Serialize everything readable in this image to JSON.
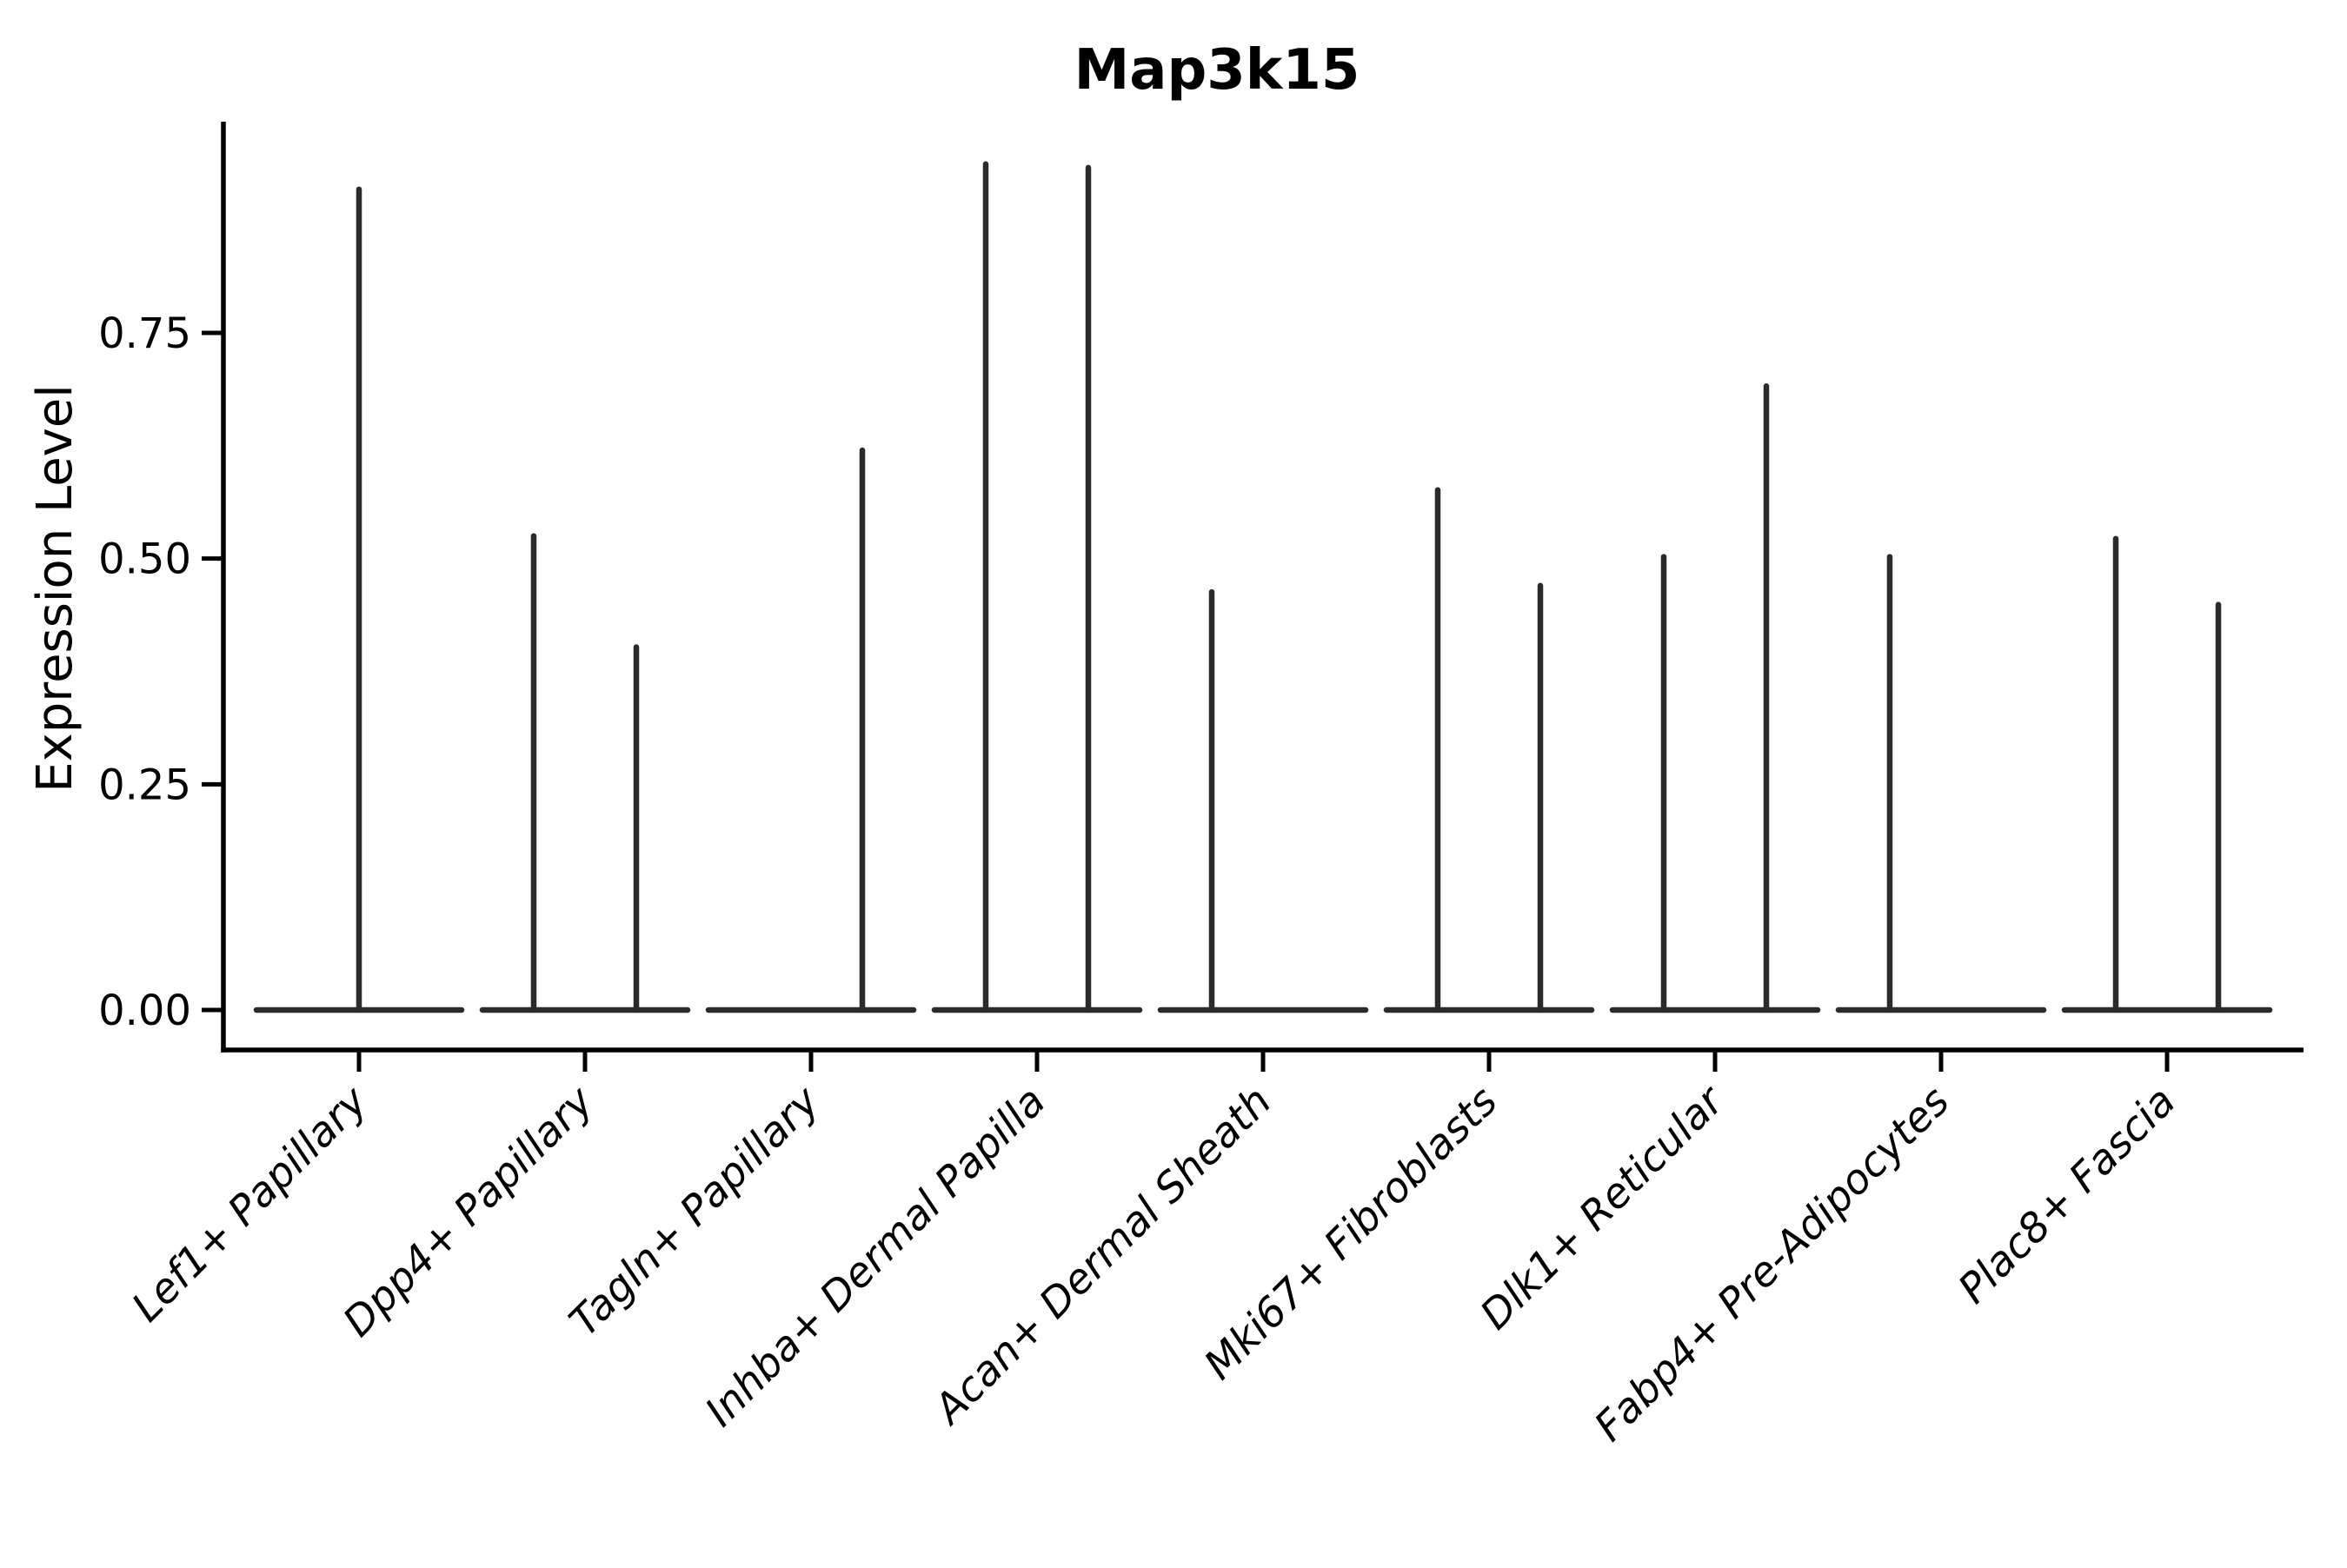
{
  "chart_data": {
    "type": "violin",
    "title": "Map3k15",
    "ylabel": "Expression Level",
    "xlabel": "",
    "ylim": [
      0,
      0.988
    ],
    "ytick_labels": [
      "0.00",
      "0.25",
      "0.50",
      "0.75"
    ],
    "ytick_values": [
      0.0,
      0.25,
      0.5,
      0.75
    ],
    "grid": false,
    "legend": "none",
    "baseline_halfwidth": 0.454,
    "categories": [
      {
        "label": "Lef1+ Papillary",
        "spikes": [
          {
            "offset": 0.0,
            "max": 0.909
          }
        ]
      },
      {
        "label": "Dpp4+ Papillary",
        "spikes": [
          {
            "offset": -0.227,
            "max": 0.525
          },
          {
            "offset": 0.227,
            "max": 0.402
          }
        ]
      },
      {
        "label": "Tagln+ Papillary",
        "spikes": [
          {
            "offset": 0.227,
            "max": 0.62
          }
        ]
      },
      {
        "label": "Inhba+ Dermal Papilla",
        "spikes": [
          {
            "offset": -0.227,
            "max": 0.937
          },
          {
            "offset": 0.227,
            "max": 0.933
          }
        ]
      },
      {
        "label": "Acan+ Dermal Sheath",
        "spikes": [
          {
            "offset": -0.227,
            "max": 0.463
          }
        ]
      },
      {
        "label": "Mki67+ Fibroblasts",
        "spikes": [
          {
            "offset": -0.227,
            "max": 0.576
          },
          {
            "offset": 0.227,
            "max": 0.47
          }
        ]
      },
      {
        "label": "Dlk1+ Reticular",
        "spikes": [
          {
            "offset": -0.227,
            "max": 0.502
          },
          {
            "offset": 0.227,
            "max": 0.691
          }
        ]
      },
      {
        "label": "Fabp4+ Pre-Adipocytes",
        "spikes": [
          {
            "offset": -0.227,
            "max": 0.502
          }
        ]
      },
      {
        "label": "Plac8+ Fascia",
        "spikes": [
          {
            "offset": -0.227,
            "max": 0.522
          },
          {
            "offset": 0.227,
            "max": 0.449
          }
        ]
      }
    ],
    "colors": {
      "violin_line": "#2b2b2b",
      "axis": "#000000",
      "text": "#000000",
      "background": "#ffffff"
    }
  }
}
